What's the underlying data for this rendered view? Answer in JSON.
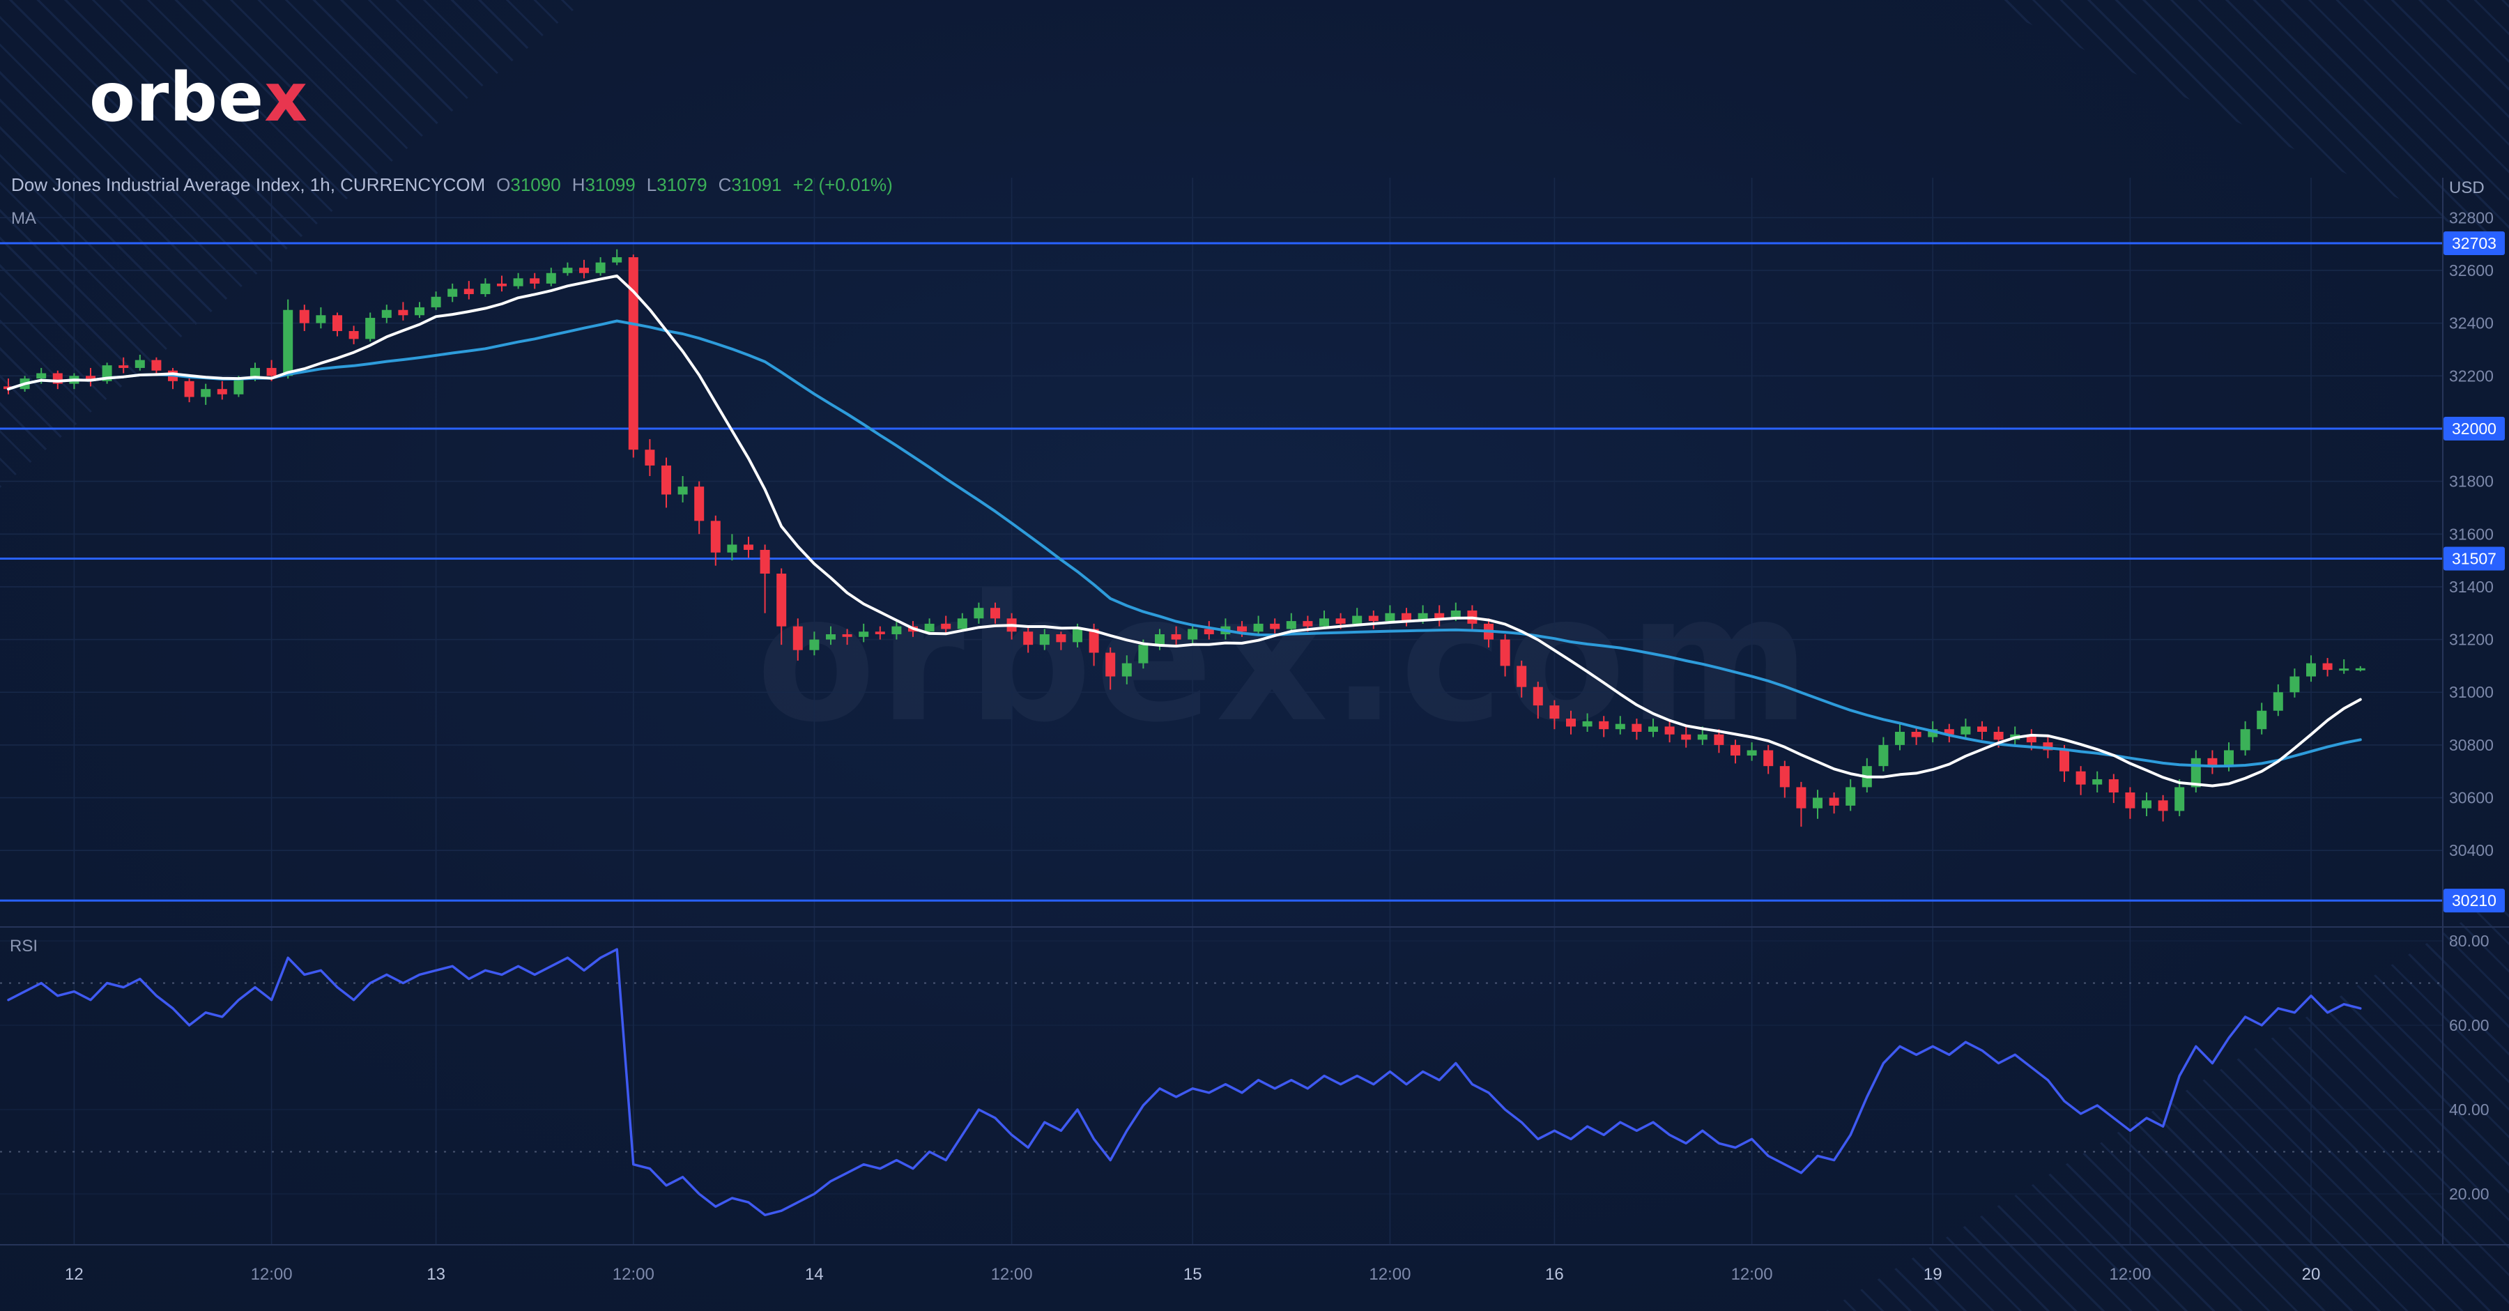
{
  "brand": {
    "logo_prefix": "orbe",
    "logo_suffix": "x",
    "watermark": "orbex.com"
  },
  "header": {
    "symbol": "Dow Jones Industrial Average Index, 1h, CURRENCYCOM",
    "open_label": "O",
    "open": "31090",
    "high_label": "H",
    "high": "31099",
    "low_label": "L",
    "low": "31079",
    "close_label": "C",
    "close": "31091",
    "change": "+2 (+0.01%)",
    "indicator_label": "MA",
    "rsi_label": "RSI"
  },
  "colors": {
    "background": "#0d1a35",
    "up": "#3bb158",
    "down": "#f23645",
    "level_blue": "#2962ff",
    "ma_white": "#ffffff",
    "ma_blue": "#2e9cdb",
    "rsi_line": "#3f5af2",
    "logo_red": "#e8364f"
  },
  "chart_data": {
    "type": "candlestick",
    "title": "Dow Jones Industrial Average Index, 1h, CURRENCYCOM",
    "axis_currency": "USD",
    "price_ylim": [
      30150,
      32850
    ],
    "price_ticks": [
      32800,
      32600,
      32400,
      32200,
      32000,
      31800,
      31600,
      31400,
      31200,
      31000,
      30800,
      30600,
      30400
    ],
    "levels": [
      {
        "price": 32703,
        "label": "32703"
      },
      {
        "price": 32000,
        "label": "32000"
      },
      {
        "price": 31507,
        "label": "31507"
      },
      {
        "price": 30210,
        "label": "30210"
      }
    ],
    "time_ticks": [
      {
        "bar": 4,
        "label": "12",
        "major": true
      },
      {
        "bar": 16,
        "label": "12:00",
        "major": false
      },
      {
        "bar": 26,
        "label": "13",
        "major": true
      },
      {
        "bar": 38,
        "label": "12:00",
        "major": false
      },
      {
        "bar": 49,
        "label": "14",
        "major": true
      },
      {
        "bar": 61,
        "label": "12:00",
        "major": false
      },
      {
        "bar": 72,
        "label": "15",
        "major": true
      },
      {
        "bar": 84,
        "label": "12:00",
        "major": false
      },
      {
        "bar": 94,
        "label": "16",
        "major": true
      },
      {
        "bar": 106,
        "label": "12:00",
        "major": false
      },
      {
        "bar": 117,
        "label": "19",
        "major": true
      },
      {
        "bar": 129,
        "label": "12:00",
        "major": false
      },
      {
        "bar": 140,
        "label": "20",
        "major": true
      }
    ],
    "ma_white_period": 10,
    "ma_blue_period": 30,
    "rsi_period": 14,
    "rsi_ylim": [
      0,
      100
    ],
    "rsi_guides": [
      70,
      30
    ],
    "rsi_ticks": [
      {
        "value": 80,
        "label": "80.00"
      },
      {
        "value": 60,
        "label": "60.00"
      },
      {
        "value": 40,
        "label": "40.00"
      },
      {
        "value": 20,
        "label": "20.00"
      }
    ],
    "candles": [
      [
        32160,
        32190,
        32130,
        32150
      ],
      [
        32150,
        32200,
        32140,
        32190
      ],
      [
        32190,
        32230,
        32170,
        32210
      ],
      [
        32210,
        32220,
        32150,
        32170
      ],
      [
        32170,
        32210,
        32150,
        32200
      ],
      [
        32200,
        32230,
        32160,
        32180
      ],
      [
        32180,
        32250,
        32170,
        32240
      ],
      [
        32240,
        32270,
        32210,
        32230
      ],
      [
        32230,
        32280,
        32220,
        32260
      ],
      [
        32260,
        32270,
        32200,
        32220
      ],
      [
        32220,
        32230,
        32150,
        32180
      ],
      [
        32180,
        32190,
        32100,
        32120
      ],
      [
        32120,
        32170,
        32090,
        32150
      ],
      [
        32150,
        32180,
        32110,
        32130
      ],
      [
        32130,
        32200,
        32120,
        32190
      ],
      [
        32190,
        32250,
        32180,
        32230
      ],
      [
        32230,
        32260,
        32180,
        32200
      ],
      [
        32200,
        32490,
        32190,
        32450
      ],
      [
        32450,
        32470,
        32370,
        32400
      ],
      [
        32400,
        32460,
        32380,
        32430
      ],
      [
        32430,
        32440,
        32350,
        32370
      ],
      [
        32370,
        32390,
        32320,
        32340
      ],
      [
        32340,
        32440,
        32330,
        32420
      ],
      [
        32420,
        32470,
        32400,
        32450
      ],
      [
        32450,
        32480,
        32410,
        32430
      ],
      [
        32430,
        32480,
        32420,
        32460
      ],
      [
        32460,
        32520,
        32450,
        32500
      ],
      [
        32500,
        32550,
        32480,
        32530
      ],
      [
        32530,
        32560,
        32490,
        32510
      ],
      [
        32510,
        32570,
        32500,
        32550
      ],
      [
        32550,
        32580,
        32520,
        32540
      ],
      [
        32540,
        32590,
        32530,
        32570
      ],
      [
        32570,
        32590,
        32530,
        32550
      ],
      [
        32550,
        32610,
        32540,
        32590
      ],
      [
        32590,
        32630,
        32580,
        32610
      ],
      [
        32610,
        32640,
        32570,
        32590
      ],
      [
        32590,
        32650,
        32580,
        32630
      ],
      [
        32630,
        32680,
        32620,
        32650
      ],
      [
        32650,
        32660,
        31890,
        31920
      ],
      [
        31920,
        31960,
        31820,
        31860
      ],
      [
        31860,
        31890,
        31700,
        31750
      ],
      [
        31750,
        31820,
        31720,
        31780
      ],
      [
        31780,
        31800,
        31600,
        31650
      ],
      [
        31650,
        31670,
        31480,
        31530
      ],
      [
        31530,
        31600,
        31500,
        31560
      ],
      [
        31560,
        31590,
        31510,
        31540
      ],
      [
        31540,
        31560,
        31300,
        31450
      ],
      [
        31450,
        31470,
        31180,
        31250
      ],
      [
        31250,
        31280,
        31120,
        31160
      ],
      [
        31160,
        31230,
        31140,
        31200
      ],
      [
        31200,
        31250,
        31180,
        31220
      ],
      [
        31220,
        31240,
        31180,
        31210
      ],
      [
        31210,
        31260,
        31190,
        31230
      ],
      [
        31230,
        31250,
        31200,
        31220
      ],
      [
        31220,
        31270,
        31200,
        31250
      ],
      [
        31250,
        31270,
        31210,
        31230
      ],
      [
        31230,
        31280,
        31220,
        31260
      ],
      [
        31260,
        31290,
        31220,
        31240
      ],
      [
        31240,
        31300,
        31230,
        31280
      ],
      [
        31280,
        31340,
        31260,
        31320
      ],
      [
        31320,
        31340,
        31260,
        31280
      ],
      [
        31280,
        31300,
        31200,
        31230
      ],
      [
        31230,
        31250,
        31150,
        31180
      ],
      [
        31180,
        31240,
        31160,
        31220
      ],
      [
        31220,
        31230,
        31160,
        31190
      ],
      [
        31190,
        31260,
        31170,
        31240
      ],
      [
        31240,
        31260,
        31100,
        31150
      ],
      [
        31150,
        31170,
        31010,
        31060
      ],
      [
        31060,
        31140,
        31030,
        31110
      ],
      [
        31110,
        31200,
        31090,
        31180
      ],
      [
        31180,
        31240,
        31160,
        31220
      ],
      [
        31220,
        31250,
        31180,
        31200
      ],
      [
        31200,
        31260,
        31180,
        31240
      ],
      [
        31240,
        31270,
        31200,
        31220
      ],
      [
        31220,
        31280,
        31200,
        31250
      ],
      [
        31250,
        31270,
        31210,
        31230
      ],
      [
        31230,
        31290,
        31220,
        31260
      ],
      [
        31260,
        31280,
        31220,
        31240
      ],
      [
        31240,
        31300,
        31230,
        31270
      ],
      [
        31270,
        31290,
        31230,
        31250
      ],
      [
        31250,
        31310,
        31240,
        31280
      ],
      [
        31280,
        31300,
        31240,
        31260
      ],
      [
        31260,
        31320,
        31250,
        31290
      ],
      [
        31290,
        31310,
        31240,
        31270
      ],
      [
        31270,
        31330,
        31260,
        31300
      ],
      [
        31300,
        31320,
        31250,
        31270
      ],
      [
        31270,
        31330,
        31260,
        31300
      ],
      [
        31300,
        31330,
        31250,
        31280
      ],
      [
        31280,
        31340,
        31270,
        31310
      ],
      [
        31310,
        31330,
        31240,
        31260
      ],
      [
        31260,
        31280,
        31170,
        31200
      ],
      [
        31200,
        31220,
        31060,
        31100
      ],
      [
        31100,
        31120,
        30980,
        31020
      ],
      [
        31020,
        31040,
        30900,
        30950
      ],
      [
        30950,
        30970,
        30860,
        30900
      ],
      [
        30900,
        30930,
        30840,
        30870
      ],
      [
        30870,
        30920,
        30850,
        30890
      ],
      [
        30890,
        30910,
        30830,
        30860
      ],
      [
        30860,
        30910,
        30840,
        30880
      ],
      [
        30880,
        30900,
        30820,
        30850
      ],
      [
        30850,
        30900,
        30830,
        30870
      ],
      [
        30870,
        30890,
        30810,
        30840
      ],
      [
        30840,
        30870,
        30790,
        30820
      ],
      [
        30820,
        30870,
        30800,
        30840
      ],
      [
        30840,
        30860,
        30770,
        30800
      ],
      [
        30800,
        30820,
        30730,
        30760
      ],
      [
        30760,
        30810,
        30740,
        30780
      ],
      [
        30780,
        30800,
        30690,
        30720
      ],
      [
        30720,
        30740,
        30600,
        30640
      ],
      [
        30640,
        30660,
        30490,
        30560
      ],
      [
        30560,
        30630,
        30520,
        30600
      ],
      [
        30600,
        30620,
        30540,
        30570
      ],
      [
        30570,
        30670,
        30550,
        30640
      ],
      [
        30640,
        30750,
        30620,
        30720
      ],
      [
        30720,
        30830,
        30700,
        30800
      ],
      [
        30800,
        30880,
        30780,
        30850
      ],
      [
        30850,
        30870,
        30800,
        30830
      ],
      [
        30830,
        30890,
        30810,
        30860
      ],
      [
        30860,
        30880,
        30810,
        30840
      ],
      [
        30840,
        30900,
        30820,
        30870
      ],
      [
        30870,
        30890,
        30820,
        30850
      ],
      [
        30850,
        30870,
        30790,
        30820
      ],
      [
        30820,
        30870,
        30800,
        30840
      ],
      [
        30840,
        30860,
        30780,
        30810
      ],
      [
        30810,
        30830,
        30750,
        30780
      ],
      [
        30780,
        30800,
        30660,
        30700
      ],
      [
        30700,
        30720,
        30610,
        30650
      ],
      [
        30650,
        30700,
        30620,
        30670
      ],
      [
        30670,
        30690,
        30580,
        30620
      ],
      [
        30620,
        30640,
        30520,
        30560
      ],
      [
        30560,
        30620,
        30530,
        30590
      ],
      [
        30590,
        30610,
        30510,
        30550
      ],
      [
        30550,
        30670,
        30530,
        30640
      ],
      [
        30640,
        30780,
        30620,
        30750
      ],
      [
        30750,
        30780,
        30690,
        30720
      ],
      [
        30720,
        30810,
        30700,
        30780
      ],
      [
        30780,
        30890,
        30760,
        30860
      ],
      [
        30860,
        30960,
        30840,
        30930
      ],
      [
        30930,
        31030,
        30910,
        31000
      ],
      [
        31000,
        31090,
        30980,
        31060
      ],
      [
        31060,
        31140,
        31040,
        31110
      ],
      [
        31110,
        31130,
        31060,
        31085
      ],
      [
        31085,
        31125,
        31070,
        31090
      ],
      [
        31090,
        31099,
        31079,
        31091
      ]
    ],
    "rsi": [
      66,
      68,
      70,
      67,
      68,
      66,
      70,
      69,
      71,
      67,
      64,
      60,
      63,
      62,
      66,
      69,
      66,
      76,
      72,
      73,
      69,
      66,
      70,
      72,
      70,
      72,
      73,
      74,
      71,
      73,
      72,
      74,
      72,
      74,
      76,
      73,
      76,
      78,
      27,
      26,
      22,
      24,
      20,
      17,
      19,
      18,
      15,
      16,
      18,
      20,
      23,
      25,
      27,
      26,
      28,
      26,
      30,
      28,
      34,
      40,
      38,
      34,
      31,
      37,
      35,
      40,
      33,
      28,
      35,
      41,
      45,
      43,
      45,
      44,
      46,
      44,
      47,
      45,
      47,
      45,
      48,
      46,
      48,
      46,
      49,
      46,
      49,
      47,
      51,
      46,
      44,
      40,
      37,
      33,
      35,
      33,
      36,
      34,
      37,
      35,
      37,
      34,
      32,
      35,
      32,
      31,
      33,
      29,
      27,
      25,
      29,
      28,
      34,
      43,
      51,
      55,
      53,
      55,
      53,
      56,
      54,
      51,
      53,
      50,
      47,
      42,
      39,
      41,
      38,
      35,
      38,
      36,
      48,
      55,
      51,
      57,
      62,
      60,
      64,
      63,
      67,
      63,
      65,
      64
    ]
  }
}
